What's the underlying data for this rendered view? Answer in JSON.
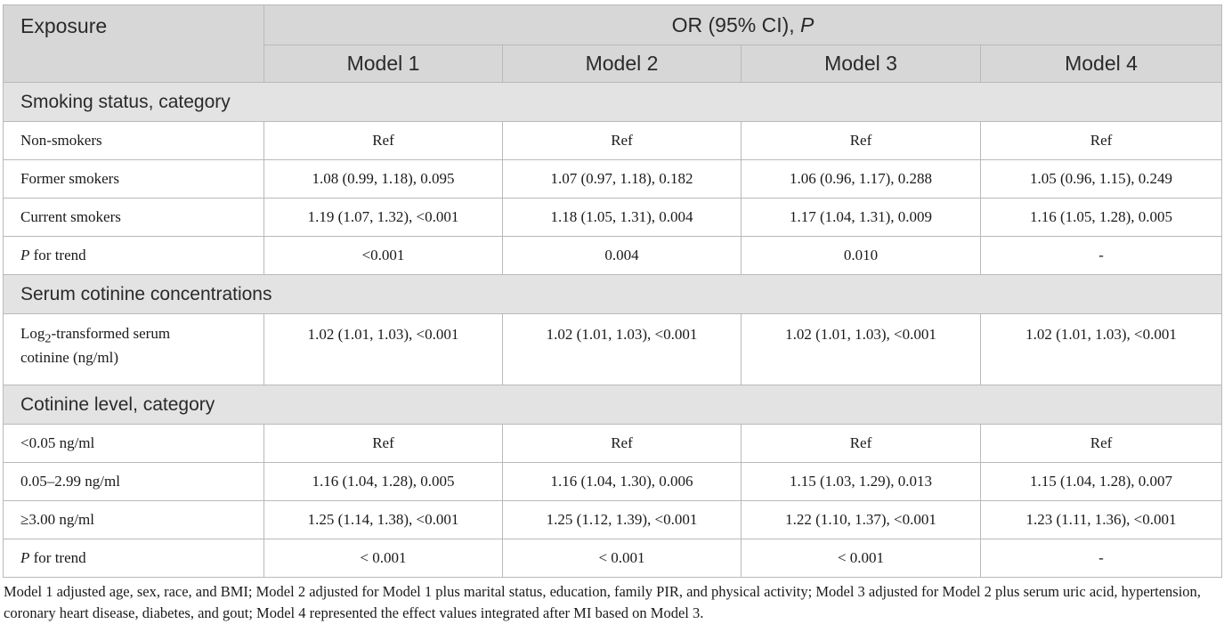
{
  "header": {
    "exposure": "Exposure",
    "or_label": "OR (95% CI), ",
    "or_p": "P",
    "models": [
      "Model 1",
      "Model 2",
      "Model 3",
      "Model 4"
    ]
  },
  "sections": [
    {
      "title": "Smoking status, category",
      "rows": [
        {
          "label": "Non-smokers",
          "values": [
            "Ref",
            "Ref",
            "Ref",
            "Ref"
          ]
        },
        {
          "label": "Former smokers",
          "values": [
            "1.08 (0.99, 1.18), 0.095",
            "1.07 (0.97, 1.18), 0.182",
            "1.06 (0.96, 1.17), 0.288",
            "1.05 (0.96, 1.15), 0.249"
          ]
        },
        {
          "label": "Current smokers",
          "values": [
            "1.19 (1.07, 1.32), <0.001",
            "1.18 (1.05, 1.31), 0.004",
            "1.17 (1.04, 1.31), 0.009",
            "1.16 (1.05, 1.28), 0.005"
          ]
        },
        {
          "label_italic": "P",
          "label_rest": " for trend",
          "values": [
            "<0.001",
            "0.004",
            "0.010",
            "-"
          ]
        }
      ]
    },
    {
      "title": "Serum cotinine concentrations",
      "rows": [
        {
          "label_pre": "Log",
          "label_sub": "2",
          "label_post": "-transformed serum",
          "label_line2": "cotinine (ng/ml)",
          "values": [
            "1.02 (1.01, 1.03), <0.001",
            "1.02 (1.01, 1.03), <0.001",
            "1.02 (1.01, 1.03), <0.001",
            "1.02 (1.01, 1.03), <0.001"
          ]
        }
      ]
    },
    {
      "title": "Cotinine level, category",
      "rows": [
        {
          "label": "<0.05 ng/ml",
          "values": [
            "Ref",
            "Ref",
            "Ref",
            "Ref"
          ]
        },
        {
          "label": "0.05–2.99 ng/ml",
          "values": [
            "1.16 (1.04, 1.28), 0.005",
            "1.16 (1.04, 1.30), 0.006",
            "1.15 (1.03, 1.29), 0.013",
            "1.15 (1.04, 1.28), 0.007"
          ]
        },
        {
          "label": "≥3.00 ng/ml",
          "values": [
            "1.25 (1.14, 1.38), <0.001",
            "1.25 (1.12, 1.39), <0.001",
            "1.22 (1.10, 1.37), <0.001",
            "1.23 (1.11, 1.36), <0.001"
          ]
        },
        {
          "label_italic": "P",
          "label_rest": " for trend",
          "values": [
            "< 0.001",
            "< 0.001",
            "< 0.001",
            "-"
          ]
        }
      ]
    }
  ],
  "footnote": "Model 1 adjusted age, sex, race, and BMI; Model 2 adjusted for Model 1 plus marital status, education, family PIR, and physical activity; Model 3 adjusted for Model 2 plus serum uric acid, hypertension, coronary heart disease, diabetes, and gout; Model 4 represented the effect values integrated after MI based on Model 3."
}
